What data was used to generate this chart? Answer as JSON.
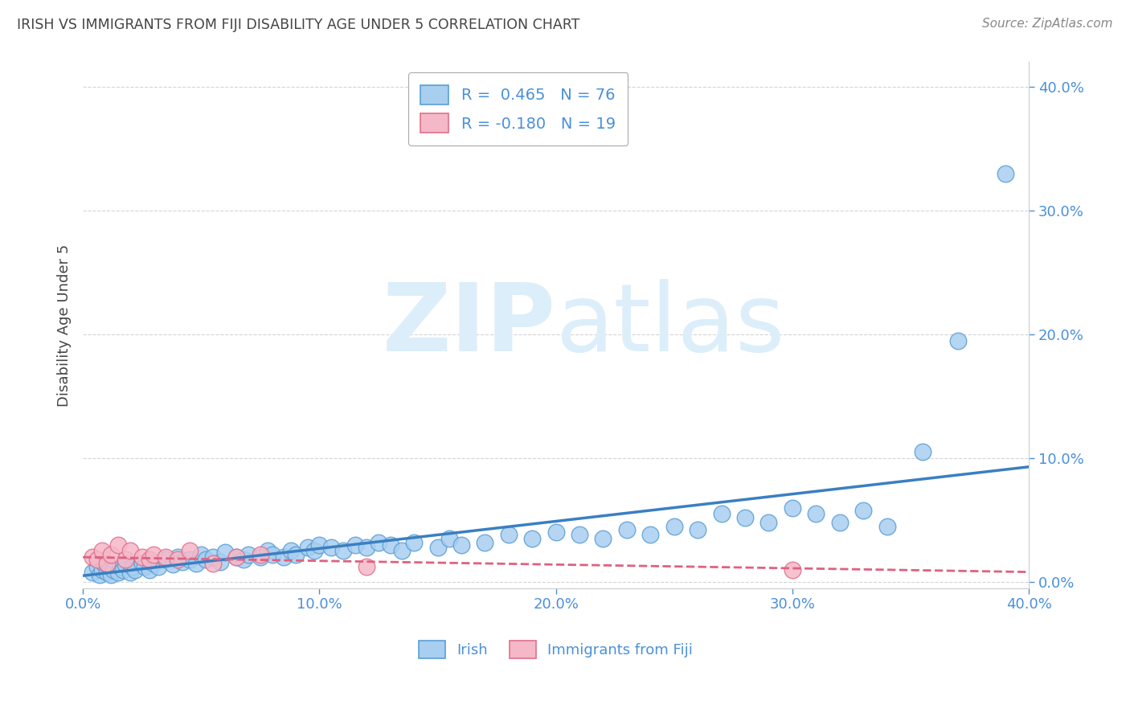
{
  "title": "IRISH VS IMMIGRANTS FROM FIJI DISABILITY AGE UNDER 5 CORRELATION CHART",
  "source": "Source: ZipAtlas.com",
  "ylabel": "Disability Age Under 5",
  "xlim": [
    0.0,
    0.4
  ],
  "ylim": [
    -0.005,
    0.42
  ],
  "xticks": [
    0.0,
    0.1,
    0.2,
    0.3,
    0.4
  ],
  "yticks": [
    0.0,
    0.1,
    0.2,
    0.3,
    0.4
  ],
  "irish_R": 0.465,
  "irish_N": 76,
  "fiji_R": -0.18,
  "fiji_N": 19,
  "irish_color": "#a8cef0",
  "fiji_color": "#f5b8c8",
  "irish_edge_color": "#5a9fd4",
  "fiji_edge_color": "#e0708a",
  "irish_line_color": "#3a7fc1",
  "fiji_line_color": "#e06080",
  "watermark_color": "#dceefa",
  "background_color": "#ffffff",
  "title_color": "#444444",
  "tick_color": "#4a90d9",
  "grid_color": "#d0d0d0",
  "irish_x": [
    0.004,
    0.006,
    0.007,
    0.008,
    0.009,
    0.01,
    0.011,
    0.012,
    0.013,
    0.015,
    0.016,
    0.017,
    0.018,
    0.02,
    0.021,
    0.022,
    0.025,
    0.026,
    0.028,
    0.03,
    0.032,
    0.035,
    0.038,
    0.04,
    0.042,
    0.045,
    0.048,
    0.05,
    0.052,
    0.055,
    0.058,
    0.06,
    0.065,
    0.068,
    0.07,
    0.075,
    0.078,
    0.08,
    0.085,
    0.088,
    0.09,
    0.095,
    0.098,
    0.1,
    0.105,
    0.11,
    0.115,
    0.12,
    0.125,
    0.13,
    0.135,
    0.14,
    0.15,
    0.155,
    0.16,
    0.17,
    0.18,
    0.19,
    0.2,
    0.21,
    0.22,
    0.23,
    0.24,
    0.25,
    0.26,
    0.27,
    0.28,
    0.29,
    0.3,
    0.31,
    0.32,
    0.33,
    0.34,
    0.355,
    0.37,
    0.39
  ],
  "irish_y": [
    0.008,
    0.012,
    0.006,
    0.01,
    0.014,
    0.008,
    0.012,
    0.006,
    0.01,
    0.008,
    0.012,
    0.01,
    0.014,
    0.008,
    0.012,
    0.01,
    0.015,
    0.012,
    0.01,
    0.015,
    0.012,
    0.018,
    0.014,
    0.02,
    0.016,
    0.018,
    0.015,
    0.022,
    0.018,
    0.02,
    0.016,
    0.024,
    0.02,
    0.018,
    0.022,
    0.02,
    0.025,
    0.022,
    0.02,
    0.025,
    0.022,
    0.028,
    0.025,
    0.03,
    0.028,
    0.025,
    0.03,
    0.028,
    0.032,
    0.03,
    0.025,
    0.032,
    0.028,
    0.035,
    0.03,
    0.032,
    0.038,
    0.035,
    0.04,
    0.038,
    0.035,
    0.042,
    0.038,
    0.045,
    0.042,
    0.055,
    0.052,
    0.048,
    0.06,
    0.055,
    0.048,
    0.058,
    0.045,
    0.105,
    0.195,
    0.33
  ],
  "fiji_x": [
    0.004,
    0.006,
    0.008,
    0.01,
    0.012,
    0.015,
    0.018,
    0.02,
    0.025,
    0.028,
    0.03,
    0.035,
    0.04,
    0.045,
    0.055,
    0.065,
    0.075,
    0.12,
    0.3
  ],
  "fiji_y": [
    0.02,
    0.018,
    0.025,
    0.015,
    0.022,
    0.03,
    0.018,
    0.025,
    0.02,
    0.018,
    0.022,
    0.02,
    0.018,
    0.025,
    0.015,
    0.02,
    0.022,
    0.012,
    0.01
  ],
  "irish_line_x": [
    0.0,
    0.4
  ],
  "irish_line_y_start": 0.005,
  "irish_line_y_end": 0.093,
  "fiji_line_y_start": 0.02,
  "fiji_line_y_end": 0.008
}
